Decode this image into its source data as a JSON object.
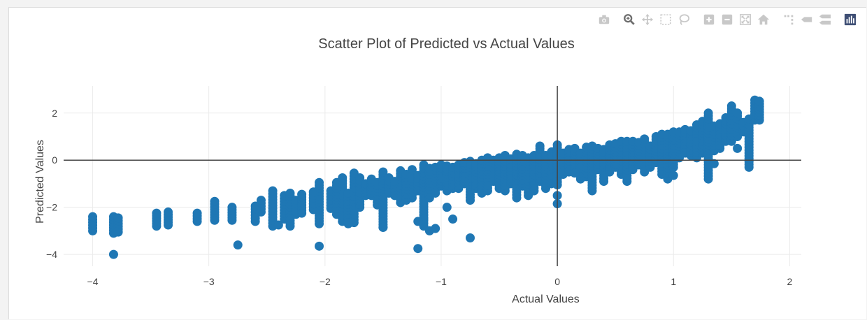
{
  "modebar": {
    "buttons": [
      {
        "name": "camera-icon",
        "group": 0
      },
      {
        "name": "zoom-icon",
        "group": 1,
        "active": true
      },
      {
        "name": "pan-icon",
        "group": 1
      },
      {
        "name": "box-select-icon",
        "group": 1
      },
      {
        "name": "lasso-select-icon",
        "group": 1
      },
      {
        "name": "zoom-in-icon",
        "group": 2
      },
      {
        "name": "zoom-out-icon",
        "group": 2
      },
      {
        "name": "autoscale-icon",
        "group": 2
      },
      {
        "name": "reset-axes-icon",
        "group": 2
      },
      {
        "name": "spike-lines-icon",
        "group": 3
      },
      {
        "name": "hover-closest-icon",
        "group": 3
      },
      {
        "name": "hover-compare-icon",
        "group": 3
      },
      {
        "name": "plotly-logo-icon",
        "group": 4
      }
    ],
    "colors": {
      "idle": "#c8c8c8",
      "active": "#6e6e6e",
      "logo": "#3f4f75"
    }
  },
  "chart_data": {
    "type": "scatter",
    "title": "Scatter Plot of Predicted vs Actual Values",
    "xlabel": "Actual Values",
    "ylabel": "Predicted Values",
    "xlim": [
      -4.25,
      2.1
    ],
    "ylim": [
      -4.5,
      3.15
    ],
    "xticks": [
      -4,
      -3,
      -2,
      -1,
      0,
      1,
      2
    ],
    "yticks": [
      -4,
      -2,
      0,
      2
    ],
    "grid": true,
    "zero_lines": true,
    "marker_color": "#1f77b4",
    "series": [
      {
        "type": "columns",
        "columns": [
          [
            -4.0,
            -3.0,
            -2.4
          ],
          [
            -3.82,
            -3.1,
            -2.4
          ],
          [
            -3.78,
            -3.05,
            -2.45
          ],
          [
            -3.45,
            -2.8,
            -2.25
          ],
          [
            -3.35,
            -2.75,
            -2.2
          ],
          [
            -3.1,
            -2.6,
            -2.25
          ],
          [
            -2.95,
            -2.55,
            -1.75
          ],
          [
            -2.8,
            -2.55,
            -2.0
          ],
          [
            -2.6,
            -2.6,
            -1.95
          ],
          [
            -2.55,
            -2.2,
            -1.7
          ],
          [
            -2.45,
            -2.8,
            -1.3
          ],
          [
            -2.35,
            -2.5,
            -1.5
          ],
          [
            -2.3,
            -2.8,
            -1.4
          ],
          [
            -2.25,
            -2.3,
            -1.7
          ],
          [
            -2.2,
            -2.25,
            -1.45
          ],
          [
            -2.1,
            -2.1,
            -1.35
          ],
          [
            -2.05,
            -2.7,
            -0.95
          ],
          [
            -1.95,
            -2.05,
            -1.3
          ],
          [
            -1.9,
            -2.3,
            -0.95
          ],
          [
            -1.85,
            -2.6,
            -0.75
          ],
          [
            -1.8,
            -2.7,
            -1.4
          ],
          [
            -1.75,
            -2.65,
            -0.55
          ],
          [
            -1.7,
            -2.0,
            -0.75
          ],
          [
            -1.65,
            -1.5,
            -1.0
          ],
          [
            -1.6,
            -1.5,
            -0.8
          ],
          [
            -1.55,
            -1.9,
            -0.95
          ],
          [
            -1.5,
            -2.85,
            -0.5
          ],
          [
            -1.45,
            -1.4,
            -0.75
          ],
          [
            -1.4,
            -1.5,
            -0.9
          ],
          [
            -1.35,
            -1.8,
            -0.45
          ],
          [
            -1.3,
            -1.7,
            -0.6
          ],
          [
            -1.25,
            -1.6,
            -0.4
          ],
          [
            -1.2,
            -1.3,
            -0.65
          ],
          [
            -1.15,
            -2.8,
            -0.2
          ],
          [
            -1.1,
            -1.6,
            -0.35
          ],
          [
            -1.05,
            -1.4,
            -0.3
          ],
          [
            -1.0,
            -1.1,
            -0.2
          ],
          [
            -0.95,
            -1.3,
            -0.25
          ],
          [
            -0.9,
            -1.2,
            -0.3
          ],
          [
            -0.85,
            -1.2,
            -0.2
          ],
          [
            -0.8,
            -1.0,
            -0.1
          ],
          [
            -0.75,
            -1.7,
            -0.05
          ],
          [
            -0.7,
            -1.2,
            -0.15
          ],
          [
            -0.65,
            -1.4,
            0.0
          ],
          [
            -0.6,
            -1.3,
            0.1
          ],
          [
            -0.55,
            -0.9,
            0.0
          ],
          [
            -0.5,
            -1.2,
            0.1
          ],
          [
            -0.45,
            -1.3,
            0.2
          ],
          [
            -0.4,
            -1.0,
            0.05
          ],
          [
            -0.35,
            -1.6,
            0.25
          ],
          [
            -0.3,
            -1.1,
            0.2
          ],
          [
            -0.25,
            -1.5,
            0.1
          ],
          [
            -0.2,
            -1.3,
            0.2
          ],
          [
            -0.15,
            -0.9,
            0.6
          ],
          [
            -0.1,
            -1.2,
            0.2
          ],
          [
            -0.05,
            -1.0,
            0.35
          ],
          [
            0.0,
            -1.05,
            0.65
          ],
          [
            0.05,
            -0.6,
            0.3
          ],
          [
            0.1,
            -0.5,
            0.45
          ],
          [
            0.15,
            -0.4,
            0.5
          ],
          [
            0.2,
            -0.8,
            0.3
          ],
          [
            0.25,
            -0.7,
            0.55
          ],
          [
            0.3,
            -1.3,
            0.6
          ],
          [
            0.35,
            -0.4,
            0.5
          ],
          [
            0.4,
            -0.9,
            0.45
          ],
          [
            0.45,
            -0.5,
            0.65
          ],
          [
            0.5,
            -0.3,
            0.7
          ],
          [
            0.55,
            -0.6,
            0.8
          ],
          [
            0.6,
            -0.9,
            0.8
          ],
          [
            0.65,
            -0.4,
            0.8
          ],
          [
            0.7,
            -0.2,
            0.75
          ],
          [
            0.75,
            -0.5,
            0.9
          ],
          [
            0.8,
            -0.3,
            0.6
          ],
          [
            0.85,
            -0.1,
            1.0
          ],
          [
            0.9,
            -0.6,
            1.1
          ],
          [
            0.95,
            -0.8,
            1.1
          ],
          [
            1.0,
            -0.3,
            1.2
          ],
          [
            1.05,
            0.1,
            1.2
          ],
          [
            1.1,
            0.3,
            1.3
          ],
          [
            1.15,
            0.2,
            1.25
          ],
          [
            1.2,
            0.1,
            1.5
          ],
          [
            1.25,
            0.3,
            1.65
          ],
          [
            1.3,
            -0.8,
            2.0
          ],
          [
            1.35,
            0.4,
            1.45
          ],
          [
            1.4,
            0.5,
            1.55
          ],
          [
            1.45,
            0.8,
            1.8
          ],
          [
            1.5,
            0.8,
            2.3
          ],
          [
            1.55,
            1.0,
            2.0
          ],
          [
            1.6,
            1.2,
            1.6
          ],
          [
            1.65,
            -0.3,
            1.75
          ],
          [
            1.7,
            1.7,
            2.55
          ],
          [
            1.74,
            1.7,
            2.5
          ]
        ]
      },
      {
        "type": "points",
        "points": [
          [
            -3.82,
            -4.0
          ],
          [
            -2.75,
            -3.6
          ],
          [
            -2.05,
            -3.65
          ],
          [
            -1.2,
            -3.75
          ],
          [
            -1.15,
            -2.5
          ],
          [
            -1.1,
            -3.0
          ],
          [
            -0.9,
            -2.5
          ],
          [
            -0.75,
            -3.3
          ],
          [
            -1.05,
            -2.9
          ],
          [
            -1.2,
            -2.6
          ],
          [
            -0.95,
            -2.0
          ],
          [
            0.0,
            -1.85
          ],
          [
            0.0,
            -1.5
          ],
          [
            1.0,
            -0.65
          ],
          [
            1.35,
            -0.15
          ],
          [
            -1.8,
            -2.65
          ],
          [
            -2.4,
            -2.75
          ],
          [
            -1.5,
            -2.85
          ],
          [
            0.15,
            -0.55
          ],
          [
            1.55,
            0.5
          ]
        ]
      }
    ]
  }
}
